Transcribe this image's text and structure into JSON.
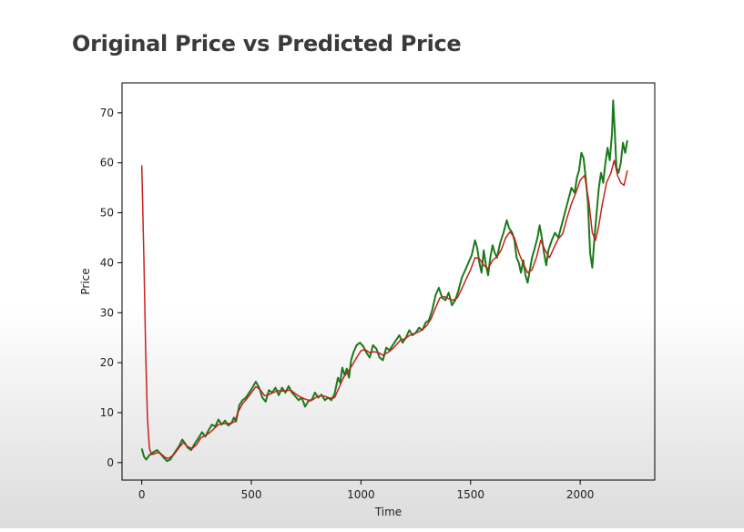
{
  "page": {
    "title": "Original Price vs Predicted Price"
  },
  "chart_data": {
    "type": "line",
    "title": "Original Price vs Predicted Price",
    "xlabel": "Time",
    "ylabel": "Price",
    "xlim": [
      -90,
      2340
    ],
    "ylim": [
      -3.5,
      76
    ],
    "x_ticks": [
      0,
      500,
      1000,
      1500,
      2000
    ],
    "y_ticks": [
      0,
      10,
      20,
      30,
      40,
      50,
      60,
      70
    ],
    "grid": false,
    "series": [
      {
        "name": "",
        "color": "#1a7a1a",
        "points": [
          [
            0,
            2.8
          ],
          [
            10,
            1.2
          ],
          [
            20,
            0.6
          ],
          [
            35,
            1.5
          ],
          [
            50,
            2.0
          ],
          [
            70,
            2.5
          ],
          [
            85,
            1.8
          ],
          [
            100,
            1.0
          ],
          [
            115,
            0.3
          ],
          [
            130,
            0.6
          ],
          [
            150,
            2.0
          ],
          [
            170,
            3.3
          ],
          [
            185,
            4.6
          ],
          [
            195,
            4.0
          ],
          [
            210,
            3.0
          ],
          [
            225,
            2.5
          ],
          [
            245,
            4.0
          ],
          [
            260,
            5.0
          ],
          [
            275,
            6.1
          ],
          [
            290,
            5.2
          ],
          [
            305,
            6.5
          ],
          [
            320,
            7.6
          ],
          [
            335,
            7.2
          ],
          [
            350,
            8.6
          ],
          [
            365,
            7.6
          ],
          [
            380,
            8.4
          ],
          [
            395,
            7.4
          ],
          [
            410,
            8.0
          ],
          [
            420,
            9.0
          ],
          [
            430,
            8.2
          ],
          [
            445,
            11.5
          ],
          [
            460,
            12.5
          ],
          [
            475,
            13.0
          ],
          [
            490,
            14.0
          ],
          [
            505,
            15.0
          ],
          [
            520,
            16.2
          ],
          [
            535,
            15.0
          ],
          [
            550,
            13.0
          ],
          [
            565,
            12.2
          ],
          [
            580,
            14.5
          ],
          [
            595,
            14.0
          ],
          [
            610,
            15.0
          ],
          [
            625,
            13.5
          ],
          [
            640,
            15.0
          ],
          [
            655,
            14.0
          ],
          [
            670,
            15.3
          ],
          [
            685,
            14.0
          ],
          [
            700,
            13.3
          ],
          [
            715,
            12.5
          ],
          [
            730,
            13.0
          ],
          [
            745,
            11.2
          ],
          [
            760,
            12.3
          ],
          [
            775,
            12.5
          ],
          [
            790,
            14.0
          ],
          [
            805,
            13.0
          ],
          [
            820,
            13.6
          ],
          [
            835,
            12.5
          ],
          [
            850,
            13.0
          ],
          [
            865,
            12.5
          ],
          [
            880,
            13.8
          ],
          [
            895,
            17.0
          ],
          [
            905,
            16.0
          ],
          [
            915,
            19.0
          ],
          [
            925,
            17.5
          ],
          [
            935,
            18.8
          ],
          [
            945,
            17.0
          ],
          [
            955,
            20.5
          ],
          [
            965,
            22.0
          ],
          [
            980,
            23.5
          ],
          [
            995,
            24.0
          ],
          [
            1010,
            23.3
          ],
          [
            1025,
            22.0
          ],
          [
            1040,
            21.0
          ],
          [
            1055,
            23.5
          ],
          [
            1070,
            22.8
          ],
          [
            1085,
            21.0
          ],
          [
            1100,
            20.5
          ],
          [
            1115,
            23.0
          ],
          [
            1130,
            22.5
          ],
          [
            1145,
            23.5
          ],
          [
            1160,
            24.5
          ],
          [
            1175,
            25.5
          ],
          [
            1190,
            24.0
          ],
          [
            1205,
            25.0
          ],
          [
            1220,
            26.5
          ],
          [
            1235,
            25.5
          ],
          [
            1250,
            26.0
          ],
          [
            1265,
            27.0
          ],
          [
            1280,
            26.5
          ],
          [
            1295,
            28.0
          ],
          [
            1310,
            28.5
          ],
          [
            1325,
            30.5
          ],
          [
            1340,
            33.5
          ],
          [
            1355,
            35.0
          ],
          [
            1370,
            33.0
          ],
          [
            1385,
            32.5
          ],
          [
            1400,
            34.0
          ],
          [
            1415,
            31.5
          ],
          [
            1430,
            32.5
          ],
          [
            1445,
            34.5
          ],
          [
            1460,
            37.0
          ],
          [
            1475,
            38.5
          ],
          [
            1490,
            40.0
          ],
          [
            1505,
            41.5
          ],
          [
            1520,
            44.5
          ],
          [
            1530,
            43.0
          ],
          [
            1540,
            40.0
          ],
          [
            1550,
            38.0
          ],
          [
            1560,
            42.5
          ],
          [
            1570,
            39.5
          ],
          [
            1580,
            37.5
          ],
          [
            1590,
            41.0
          ],
          [
            1600,
            43.5
          ],
          [
            1610,
            42.0
          ],
          [
            1620,
            41.0
          ],
          [
            1635,
            44.0
          ],
          [
            1650,
            46.0
          ],
          [
            1665,
            48.5
          ],
          [
            1675,
            47.0
          ],
          [
            1690,
            46.0
          ],
          [
            1700,
            44.5
          ],
          [
            1710,
            41.0
          ],
          [
            1720,
            40.0
          ],
          [
            1730,
            38.0
          ],
          [
            1740,
            40.5
          ],
          [
            1750,
            37.5
          ],
          [
            1760,
            36.0
          ],
          [
            1770,
            38.5
          ],
          [
            1780,
            41.0
          ],
          [
            1790,
            42.5
          ],
          [
            1805,
            45.0
          ],
          [
            1815,
            47.5
          ],
          [
            1825,
            45.0
          ],
          [
            1835,
            42.0
          ],
          [
            1845,
            39.5
          ],
          [
            1855,
            42.5
          ],
          [
            1870,
            44.5
          ],
          [
            1885,
            46.0
          ],
          [
            1900,
            45.0
          ],
          [
            1915,
            47.5
          ],
          [
            1930,
            50.0
          ],
          [
            1945,
            52.5
          ],
          [
            1960,
            55.0
          ],
          [
            1975,
            54.0
          ],
          [
            1985,
            57.0
          ],
          [
            1995,
            58.5
          ],
          [
            2005,
            62.0
          ],
          [
            2015,
            61.0
          ],
          [
            2025,
            57.0
          ],
          [
            2035,
            52.0
          ],
          [
            2045,
            42.0
          ],
          [
            2055,
            39.0
          ],
          [
            2065,
            45.0
          ],
          [
            2075,
            50.0
          ],
          [
            2085,
            55.0
          ],
          [
            2095,
            58.0
          ],
          [
            2105,
            56.0
          ],
          [
            2115,
            60.0
          ],
          [
            2125,
            63.0
          ],
          [
            2135,
            60.5
          ],
          [
            2145,
            66.0
          ],
          [
            2150,
            72.5
          ],
          [
            2158,
            66.0
          ],
          [
            2165,
            59.0
          ],
          [
            2175,
            58.0
          ],
          [
            2185,
            60.0
          ],
          [
            2195,
            64.0
          ],
          [
            2205,
            62.0
          ],
          [
            2215,
            64.5
          ]
        ]
      },
      {
        "name": "",
        "color": "#c62020",
        "points": [
          [
            0,
            59.5
          ],
          [
            10,
            40.0
          ],
          [
            18,
            22.0
          ],
          [
            26,
            9.0
          ],
          [
            35,
            2.8
          ],
          [
            45,
            1.6
          ],
          [
            60,
            1.8
          ],
          [
            75,
            2.0
          ],
          [
            90,
            1.7
          ],
          [
            105,
            1.1
          ],
          [
            120,
            0.8
          ],
          [
            135,
            1.2
          ],
          [
            150,
            1.8
          ],
          [
            170,
            3.0
          ],
          [
            190,
            4.0
          ],
          [
            210,
            3.2
          ],
          [
            230,
            2.8
          ],
          [
            250,
            3.6
          ],
          [
            270,
            5.0
          ],
          [
            290,
            5.4
          ],
          [
            310,
            6.0
          ],
          [
            330,
            6.8
          ],
          [
            350,
            7.6
          ],
          [
            370,
            7.8
          ],
          [
            390,
            7.8
          ],
          [
            410,
            7.9
          ],
          [
            425,
            8.3
          ],
          [
            440,
            10.2
          ],
          [
            460,
            11.8
          ],
          [
            480,
            12.8
          ],
          [
            500,
            14.0
          ],
          [
            520,
            15.2
          ],
          [
            540,
            14.6
          ],
          [
            560,
            13.4
          ],
          [
            580,
            13.6
          ],
          [
            600,
            14.0
          ],
          [
            620,
            14.4
          ],
          [
            640,
            14.3
          ],
          [
            660,
            14.4
          ],
          [
            680,
            14.5
          ],
          [
            700,
            13.8
          ],
          [
            720,
            13.2
          ],
          [
            740,
            12.8
          ],
          [
            760,
            12.5
          ],
          [
            780,
            12.6
          ],
          [
            800,
            13.2
          ],
          [
            820,
            13.4
          ],
          [
            840,
            13.2
          ],
          [
            860,
            12.9
          ],
          [
            880,
            13.0
          ],
          [
            900,
            15.0
          ],
          [
            920,
            17.0
          ],
          [
            940,
            18.2
          ],
          [
            960,
            19.5
          ],
          [
            980,
            21.0
          ],
          [
            1000,
            22.4
          ],
          [
            1020,
            22.6
          ],
          [
            1040,
            22.0
          ],
          [
            1060,
            22.2
          ],
          [
            1080,
            22.0
          ],
          [
            1100,
            21.5
          ],
          [
            1120,
            22.0
          ],
          [
            1140,
            22.6
          ],
          [
            1160,
            23.5
          ],
          [
            1180,
            24.5
          ],
          [
            1200,
            24.8
          ],
          [
            1220,
            25.4
          ],
          [
            1240,
            25.8
          ],
          [
            1260,
            26.1
          ],
          [
            1280,
            26.6
          ],
          [
            1300,
            27.4
          ],
          [
            1320,
            28.8
          ],
          [
            1340,
            31.0
          ],
          [
            1360,
            33.0
          ],
          [
            1380,
            33.2
          ],
          [
            1400,
            32.8
          ],
          [
            1420,
            32.5
          ],
          [
            1440,
            33.0
          ],
          [
            1460,
            34.8
          ],
          [
            1480,
            36.8
          ],
          [
            1500,
            38.6
          ],
          [
            1520,
            41.0
          ],
          [
            1540,
            40.8
          ],
          [
            1560,
            39.5
          ],
          [
            1580,
            38.8
          ],
          [
            1600,
            40.5
          ],
          [
            1620,
            41.2
          ],
          [
            1640,
            42.6
          ],
          [
            1660,
            45.0
          ],
          [
            1680,
            46.2
          ],
          [
            1700,
            45.0
          ],
          [
            1720,
            42.0
          ],
          [
            1740,
            39.8
          ],
          [
            1760,
            38.0
          ],
          [
            1780,
            38.6
          ],
          [
            1800,
            41.0
          ],
          [
            1820,
            44.5
          ],
          [
            1840,
            42.5
          ],
          [
            1860,
            41.0
          ],
          [
            1880,
            43.0
          ],
          [
            1900,
            44.8
          ],
          [
            1920,
            45.8
          ],
          [
            1940,
            49.0
          ],
          [
            1960,
            51.8
          ],
          [
            1980,
            54.0
          ],
          [
            2000,
            56.5
          ],
          [
            2020,
            57.5
          ],
          [
            2040,
            52.0
          ],
          [
            2055,
            46.0
          ],
          [
            2070,
            44.5
          ],
          [
            2085,
            47.5
          ],
          [
            2100,
            51.5
          ],
          [
            2120,
            56.0
          ],
          [
            2140,
            58.0
          ],
          [
            2155,
            60.5
          ],
          [
            2170,
            57.5
          ],
          [
            2185,
            56.0
          ],
          [
            2200,
            55.5
          ],
          [
            2215,
            58.5
          ]
        ]
      }
    ]
  }
}
